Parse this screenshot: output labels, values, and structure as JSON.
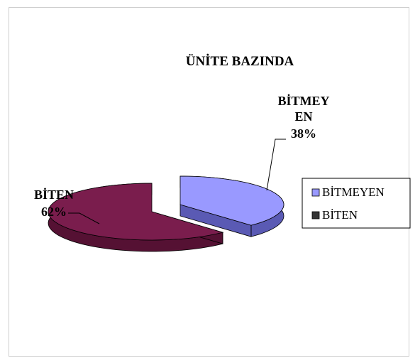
{
  "chart_data": {
    "type": "pie",
    "title": "ÜNİTE BAZINDA",
    "categories": [
      "BİTMEYEN",
      "BİTEN"
    ],
    "values": [
      38,
      62
    ],
    "data_labels": [
      {
        "lines": [
          "BİTMEY",
          "EN",
          "38%"
        ]
      },
      {
        "lines": [
          "BİTEN",
          "62%"
        ]
      }
    ],
    "legend": {
      "placement": "right",
      "entries": [
        "BİTMEYEN",
        "BİTEN"
      ]
    },
    "colors": {
      "BİTMEYEN_top": "#9999ff",
      "BİTMEYEN_side": "#5a5ab4",
      "BİTEN_top": "#7a1d4d",
      "BİTEN_side": "#551133",
      "legend_BİTMEYEN": "#9999ff",
      "legend_BİTEN": "#333333"
    }
  }
}
